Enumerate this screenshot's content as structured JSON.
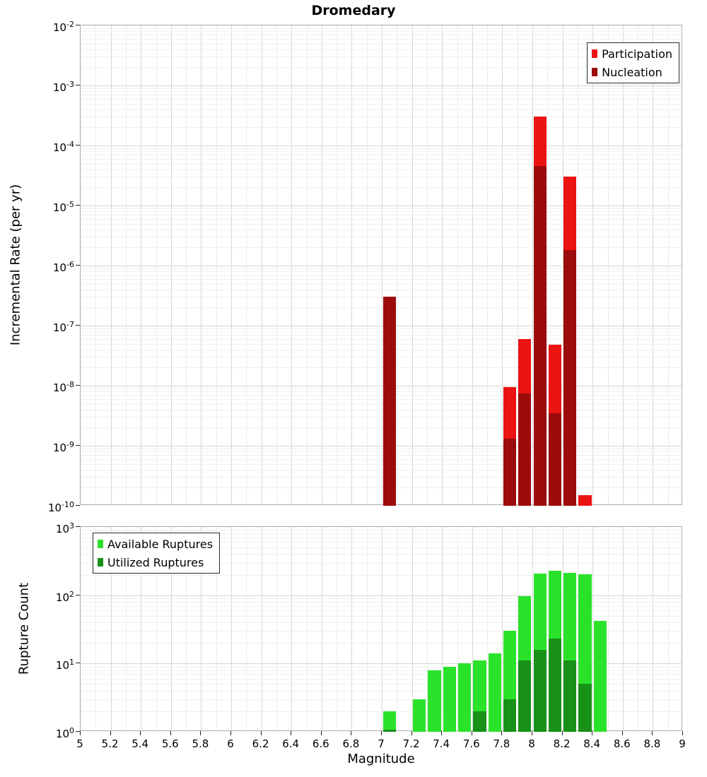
{
  "title": "Dromedary",
  "x_axis": {
    "label": "Magnitude",
    "range": [
      5,
      9
    ],
    "tick_labels": [
      "5",
      "5.2",
      "5.4",
      "5.6",
      "5.8",
      "6",
      "6.2",
      "6.4",
      "6.6",
      "6.8",
      "7",
      "7.2",
      "7.4",
      "7.6",
      "7.8",
      "8",
      "8.2",
      "8.4",
      "8.6",
      "8.8",
      "9"
    ]
  },
  "chart_data": [
    {
      "type": "bar",
      "title": "Dromedary",
      "xlabel": "Magnitude",
      "ylabel": "Incremental Rate (per yr)",
      "y_scale": "log",
      "ylim": [
        1e-10,
        0.01
      ],
      "ytick_exponents": [
        -2,
        -3,
        -4,
        -5,
        -6,
        -7,
        -8,
        -9,
        -10
      ],
      "xlim": [
        5,
        9
      ],
      "bin_width": 0.1,
      "grid": true,
      "legend_position": "top-right",
      "series": [
        {
          "name": "Participation",
          "color": "#ec1313",
          "points": [
            [
              7.0,
              3e-07
            ],
            [
              7.8,
              9.5e-09
            ],
            [
              7.9,
              6e-08
            ],
            [
              8.0,
              0.0003
            ],
            [
              8.1,
              4.8e-08
            ],
            [
              8.2,
              3e-05
            ],
            [
              8.3,
              1.5e-10
            ]
          ]
        },
        {
          "name": "Nucleation",
          "color": "#9d0c0c",
          "points": [
            [
              7.0,
              3e-07
            ],
            [
              7.8,
              1.3e-09
            ],
            [
              7.9,
              7.5e-09
            ],
            [
              8.0,
              4.5e-05
            ],
            [
              8.1,
              3.5e-09
            ],
            [
              8.2,
              1.8e-06
            ]
          ]
        }
      ]
    },
    {
      "type": "bar",
      "xlabel": "Magnitude",
      "ylabel": "Rupture Count",
      "y_scale": "log",
      "ylim": [
        1,
        1000
      ],
      "ytick_exponents": [
        3,
        2,
        1,
        0
      ],
      "xlim": [
        5,
        9
      ],
      "bin_width": 0.1,
      "grid": true,
      "legend_position": "top-left",
      "series": [
        {
          "name": "Available Ruptures",
          "color": "#2be22b",
          "points": [
            [
              7.0,
              2
            ],
            [
              7.2,
              3
            ],
            [
              7.3,
              8
            ],
            [
              7.4,
              9
            ],
            [
              7.5,
              10
            ],
            [
              7.6,
              11
            ],
            [
              7.7,
              14
            ],
            [
              7.8,
              30
            ],
            [
              7.9,
              98
            ],
            [
              8.0,
              210
            ],
            [
              8.1,
              230
            ],
            [
              8.2,
              215
            ],
            [
              8.3,
              205
            ],
            [
              8.4,
              42
            ]
          ]
        },
        {
          "name": "Utilized Ruptures",
          "color": "#189118",
          "points": [
            [
              7.0,
              1
            ],
            [
              7.6,
              2
            ],
            [
              7.8,
              3
            ],
            [
              7.9,
              11
            ],
            [
              8.0,
              16
            ],
            [
              8.1,
              23
            ],
            [
              8.2,
              11
            ],
            [
              8.3,
              5
            ]
          ]
        }
      ]
    }
  ]
}
